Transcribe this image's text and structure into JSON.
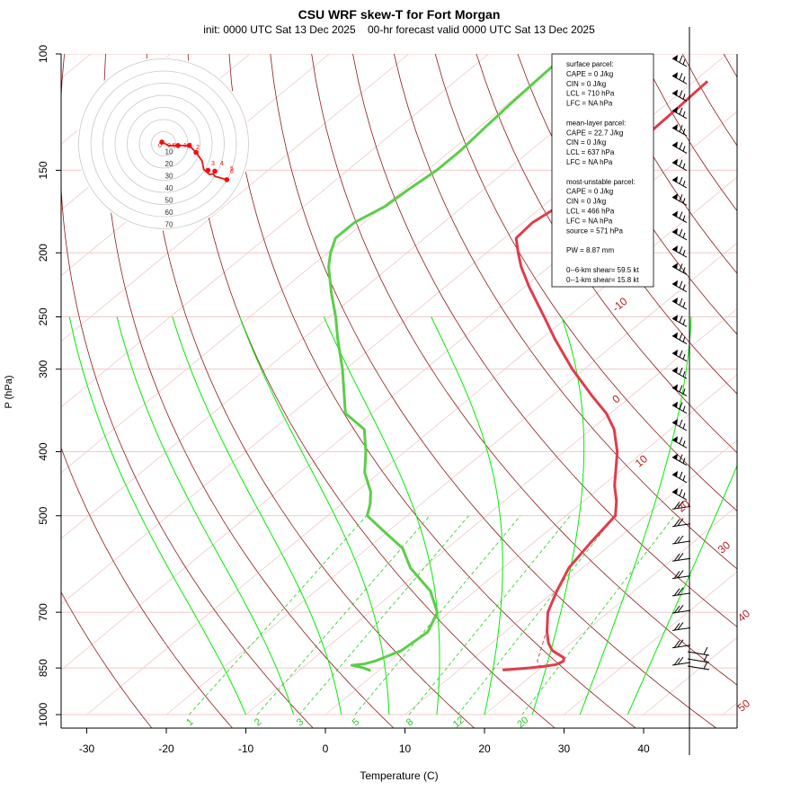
{
  "chart_data": {
    "type": "skew-t",
    "title": "CSU WRF skew-T for Fort Morgan",
    "subtitle": "init: 0000 UTC Sat 13 Dec 2025    00-hr forecast valid 0000 UTC Sat 13 Dec 2025",
    "xlabel": "Temperature (C)",
    "ylabel": "P (hPa)",
    "x_ticks": [
      "-30",
      "-20",
      "-10",
      "0",
      "10",
      "20",
      "30",
      "40"
    ],
    "p_ticks": [
      {
        "p": 100,
        "label": "100"
      },
      {
        "p": 150,
        "label": "150"
      },
      {
        "p": 200,
        "label": "200"
      },
      {
        "p": 250,
        "label": "250"
      },
      {
        "p": 300,
        "label": "300"
      },
      {
        "p": 400,
        "label": "400"
      },
      {
        "p": 500,
        "label": "500"
      },
      {
        "p": 700,
        "label": "700"
      },
      {
        "p": 850,
        "label": "850"
      },
      {
        "p": 1000,
        "label": "1000"
      }
    ],
    "isotherm_labels": [
      {
        "t": -10,
        "label": "-10"
      },
      {
        "t": 0,
        "label": "0"
      },
      {
        "t": 10,
        "label": "10"
      },
      {
        "t": 20,
        "label": "20"
      },
      {
        "t": 30,
        "label": "30"
      },
      {
        "t": 40,
        "label": "40"
      },
      {
        "t": 50,
        "label": "50"
      }
    ],
    "mixing_ratio_labels": [
      "1",
      "2",
      "3",
      "5",
      "8",
      "12",
      "20"
    ],
    "temperature_profile": [
      [
        856,
        15.5
      ],
      [
        850,
        18.5
      ],
      [
        845,
        20.2
      ],
      [
        840,
        21.4
      ],
      [
        830,
        21.8
      ],
      [
        820,
        21.3
      ],
      [
        800,
        18.8
      ],
      [
        780,
        17.2
      ],
      [
        750,
        15.3
      ],
      [
        700,
        12.4
      ],
      [
        650,
        10.3
      ],
      [
        600,
        8.3
      ],
      [
        550,
        7.2
      ],
      [
        500,
        6.2
      ],
      [
        475,
        4.1
      ],
      [
        450,
        1.5
      ],
      [
        400,
        -3.3
      ],
      [
        370,
        -7.1
      ],
      [
        350,
        -10.5
      ],
      [
        330,
        -14.8
      ],
      [
        300,
        -21.5
      ],
      [
        270,
        -28.3
      ],
      [
        250,
        -33.0
      ],
      [
        225,
        -39.5
      ],
      [
        210,
        -43.5
      ],
      [
        200,
        -46.0
      ],
      [
        190,
        -48.5
      ],
      [
        180,
        -48.8
      ],
      [
        170,
        -48.0
      ],
      [
        160,
        -47.8
      ],
      [
        150,
        -47.6
      ],
      [
        130,
        -47.8
      ],
      [
        120,
        -48.0
      ],
      [
        110,
        -48.3
      ]
    ],
    "dewpoint_profile": [
      [
        858,
        -1.0
      ],
      [
        850,
        -2.3
      ],
      [
        845,
        -3.5
      ],
      [
        842,
        -4.2
      ],
      [
        838,
        -2.8
      ],
      [
        830,
        -1.9
      ],
      [
        800,
        -0.2
      ],
      [
        750,
        0.3
      ],
      [
        700,
        -1.5
      ],
      [
        650,
        -5.6
      ],
      [
        600,
        -11.6
      ],
      [
        560,
        -15.6
      ],
      [
        530,
        -20.2
      ],
      [
        500,
        -25.0
      ],
      [
        480,
        -26.4
      ],
      [
        460,
        -28.2
      ],
      [
        430,
        -31.9
      ],
      [
        400,
        -34.9
      ],
      [
        370,
        -38.5
      ],
      [
        350,
        -43.3
      ],
      [
        300,
        -50.4
      ],
      [
        270,
        -55.6
      ],
      [
        250,
        -59.2
      ],
      [
        230,
        -63.4
      ],
      [
        210,
        -67.7
      ],
      [
        200,
        -69.6
      ],
      [
        190,
        -71.2
      ],
      [
        180,
        -71.2
      ],
      [
        170,
        -69.8
      ],
      [
        160,
        -69.4
      ],
      [
        150,
        -68.8
      ],
      [
        140,
        -68.8
      ],
      [
        130,
        -69.2
      ],
      [
        120,
        -69.6
      ],
      [
        110,
        -69.9
      ],
      [
        103,
        -70.1
      ]
    ],
    "parcel_profile": [
      [
        850,
        20.0
      ],
      [
        830,
        18.5
      ],
      [
        750,
        15.2
      ],
      [
        700,
        12.4
      ],
      [
        650,
        10.4
      ],
      [
        600,
        8.4
      ],
      [
        550,
        7.3
      ]
    ],
    "hodograph": {
      "rings": [
        10,
        20,
        30,
        40,
        50,
        60,
        70
      ],
      "ring_labels": [
        "10",
        "20",
        "30",
        "40",
        "50",
        "60",
        "70"
      ],
      "height_labels": [
        "0",
        "0.5",
        "1",
        "1.5",
        "2",
        "3",
        "4",
        "5",
        "6"
      ]
    },
    "wind_barbs_note": "wind barbs plotted at right margin"
  },
  "stats": {
    "lines": [
      "surface parcel:",
      "CAPE = 0 J/kg",
      "CIN = 0 J/kg",
      "LCL = 710 hPa",
      "LFC = NA hPa",
      "",
      "mean-layer parcel:",
      "CAPE = 22.7 J/kg",
      "CIN = 0 J/kg",
      "LCL = 637 hPa",
      "LFC = NA hPa",
      "",
      "most-unstable parcel:",
      "CAPE = 0 J/kg",
      "CIN = 0 J/kg",
      "LCL = 466 hPa",
      "LFC = NA hPa",
      "source = 571 hPa",
      "",
      "PW =  8.87 mm",
      "",
      "0--6-km shear= 59.5 kt",
      "0--1-km shear= 15.8 kt"
    ]
  },
  "colors": {
    "isotherm": "#b22222",
    "adiabat": "#8b1a1a",
    "moist_adiabat": "#00ee00",
    "mixing_ratio": "#22cc22",
    "temperature": "#e03c4b",
    "dewpoint": "#5ccd4a",
    "grid": "#f0c8c8"
  }
}
